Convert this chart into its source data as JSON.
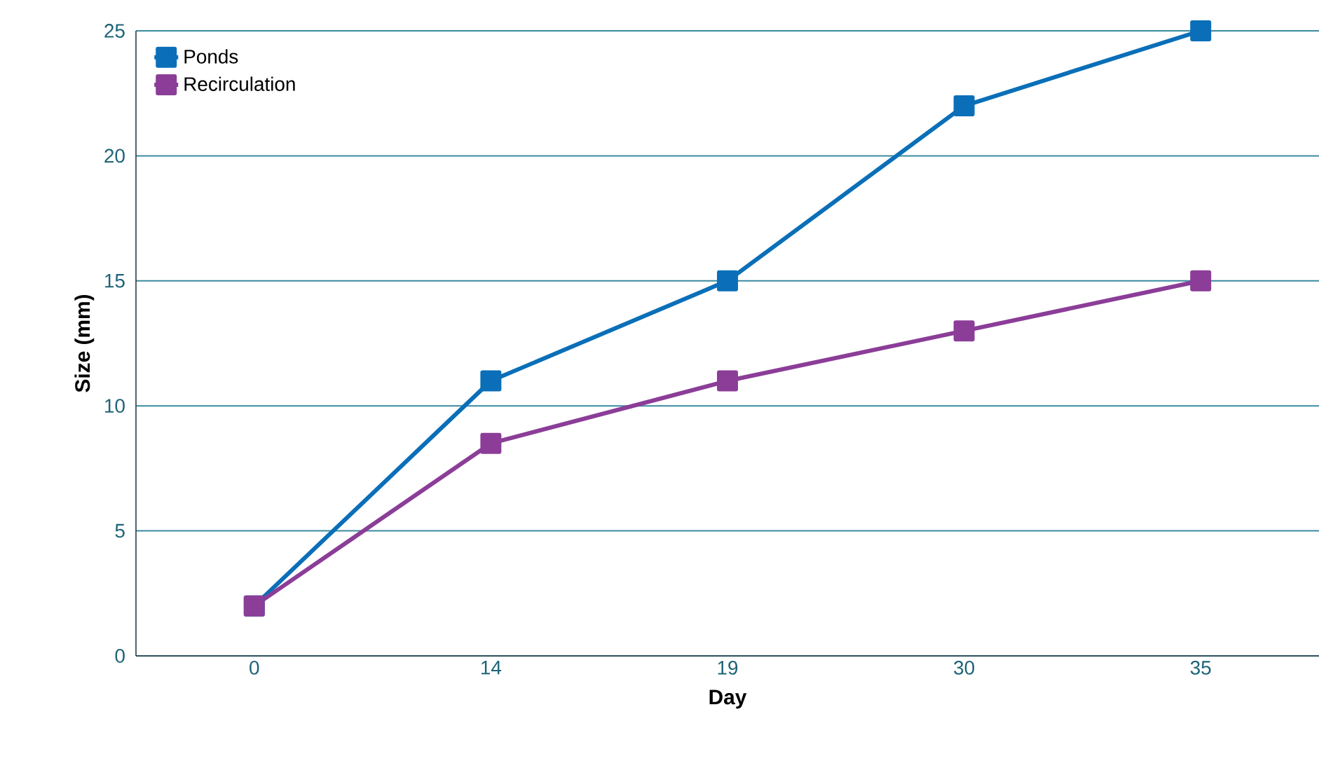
{
  "chart_data": {
    "type": "line",
    "xlabel": "Day",
    "ylabel": "Size (mm)",
    "categories": [
      "0",
      "14",
      "19",
      "30",
      "35"
    ],
    "series": [
      {
        "name": "Ponds",
        "color": "#0a6fb8",
        "values": [
          2,
          11,
          15,
          22,
          25
        ]
      },
      {
        "name": "Recirculation",
        "color": "#8b3d98",
        "values": [
          2,
          8.5,
          11,
          13,
          15
        ]
      }
    ],
    "ylim": [
      0,
      25
    ],
    "yticks": [
      0,
      5,
      10,
      15,
      20,
      25
    ],
    "grid": "y",
    "legend": "top left",
    "marker": "square",
    "line_style": "solid"
  }
}
